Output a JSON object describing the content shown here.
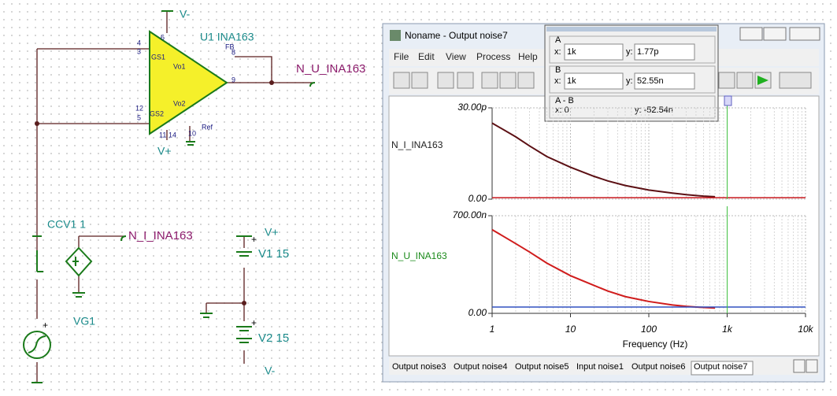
{
  "schematic": {
    "labels": [
      "V-",
      "U1 INA163",
      "4",
      "6",
      "3",
      "GS1",
      "FB",
      "8",
      "Vo1",
      "9",
      "N_U_INA163",
      "12",
      "Vo2",
      "5",
      "GS2",
      "11",
      "14",
      "10",
      "Ref",
      "V+",
      "CCV1 1",
      "N_I_INA163",
      "VG1",
      "V+",
      "V1 15",
      "V2 15",
      "V-",
      "+",
      "+",
      "+"
    ]
  },
  "window": {
    "title": "Noname - Output noise7",
    "menu": [
      "File",
      "Edit",
      "View",
      "Process",
      "Help"
    ],
    "cursor_box": {
      "a_label": "A",
      "a_x_label": "x:",
      "a_x": "1k",
      "a_y_label": "y:",
      "a_y": "1.77p",
      "b_label": "B",
      "b_x_label": "x:",
      "b_x": "1k",
      "b_y_label": "y:",
      "b_y": "52.55n",
      "ab_label": "A - B",
      "ab_x": "x: 0",
      "ab_y": "y: -52.54n"
    },
    "tabs": [
      "Output noise3",
      "Output noise4",
      "Output noise5",
      "Input noise1",
      "Output noise6",
      "Output noise7"
    ]
  },
  "chart_data": [
    {
      "type": "line",
      "ylabel": "N_I_INA163",
      "log_scale": true,
      "grid": true,
      "xlim": [
        1,
        10000
      ],
      "ylim": [
        0,
        30
      ],
      "yticks": [
        {
          "value": 0,
          "label": "0.00"
        },
        {
          "value": 30,
          "label": "30.00p"
        }
      ],
      "cursor_x": 1000,
      "series": [
        {
          "color": "#5c1014",
          "x": [
            1,
            2,
            3,
            5,
            10,
            20,
            30,
            50,
            100,
            200,
            300,
            500,
            700
          ],
          "values": [
            25,
            20.5,
            17.5,
            14,
            10.5,
            7.5,
            6,
            4.5,
            3,
            2,
            1.5,
            1,
            0.8
          ]
        },
        {
          "color": "#c8161c",
          "x": [
            1,
            10000
          ],
          "values": [
            0.5,
            0.5
          ]
        }
      ]
    },
    {
      "type": "line",
      "ylabel": "N_U_INA163",
      "xlabel": "Frequency (Hz)",
      "log_scale": true,
      "grid": true,
      "xlim": [
        1,
        10000
      ],
      "ylim": [
        0,
        700
      ],
      "xticks": [
        1,
        10,
        100,
        {
          "value": 1000,
          "label": "1k"
        },
        {
          "value": 10000,
          "label": "10k"
        }
      ],
      "yticks": [
        {
          "value": 0,
          "label": "0.00"
        },
        {
          "value": 700,
          "label": "700.00n"
        }
      ],
      "cursor_x": 1000,
      "series": [
        {
          "color": "#d01c1c",
          "x": [
            1,
            2,
            3,
            5,
            10,
            20,
            30,
            50,
            100,
            200,
            300,
            500,
            700
          ],
          "values": [
            600,
            500,
            440,
            360,
            270,
            200,
            160,
            120,
            85,
            60,
            50,
            42,
            38
          ]
        },
        {
          "color": "#3050c0",
          "x": [
            1,
            10000
          ],
          "values": [
            45,
            45
          ]
        }
      ]
    }
  ]
}
